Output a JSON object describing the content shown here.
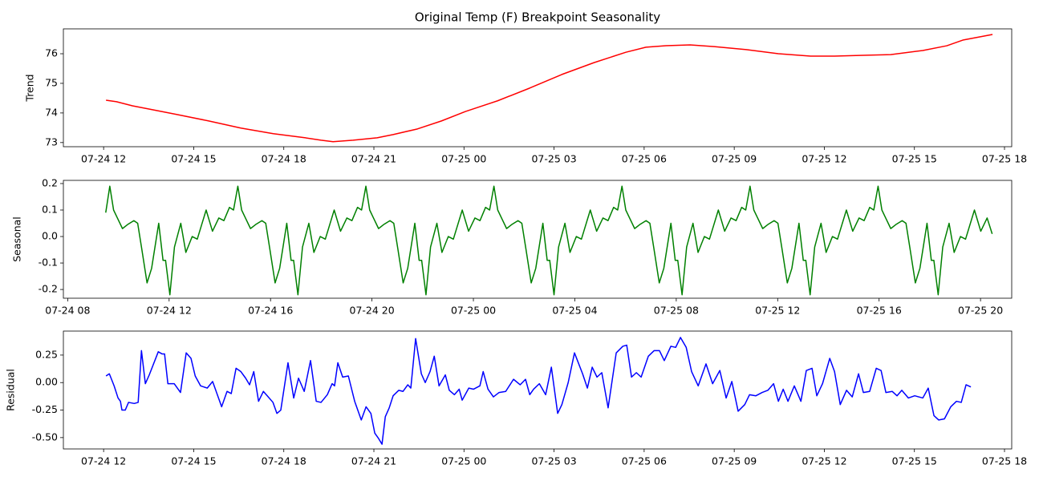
{
  "chart_data": [
    {
      "type": "line",
      "title": "Original Temp (F) Breakpoint Seasonality",
      "ylabel": "Trend",
      "color": "#ff0000",
      "x": [
        12.08,
        12.43,
        12.96,
        13.63,
        14.43,
        15.5,
        16.57,
        17.65,
        18.72,
        19.24,
        19.64,
        20.31,
        21.11,
        21.64,
        22.45,
        23.25,
        24.05,
        25.12,
        26.19,
        27.26,
        28.33,
        29.39,
        30.06,
        30.73,
        31.53,
        32.33,
        33.4,
        34.47,
        35.54,
        36.34,
        37.41,
        38.21,
        39.28,
        40.08,
        40.61,
        41.6
      ],
      "values": [
        74.43,
        74.38,
        74.24,
        74.11,
        73.95,
        73.73,
        73.49,
        73.3,
        73.16,
        73.08,
        73.03,
        73.08,
        73.16,
        73.27,
        73.46,
        73.73,
        74.05,
        74.41,
        74.84,
        75.3,
        75.7,
        76.05,
        76.22,
        76.27,
        76.3,
        76.24,
        76.14,
        76.0,
        75.92,
        75.92,
        75.95,
        75.97,
        76.11,
        76.27,
        76.46,
        76.65
      ],
      "xlim": [
        10.66,
        42.24
      ],
      "ylim": [
        72.86,
        76.84
      ],
      "xticks": [
        {
          "value": 12,
          "label": "07-24 12"
        },
        {
          "value": 15,
          "label": "07-24 15"
        },
        {
          "value": 18,
          "label": "07-24 18"
        },
        {
          "value": 21,
          "label": "07-24 21"
        },
        {
          "value": 24,
          "label": "07-25 00"
        },
        {
          "value": 27,
          "label": "07-25 03"
        },
        {
          "value": 30,
          "label": "07-25 06"
        },
        {
          "value": 33,
          "label": "07-25 09"
        },
        {
          "value": 36,
          "label": "07-25 12"
        },
        {
          "value": 39,
          "label": "07-25 15"
        },
        {
          "value": 42,
          "label": "07-25 18"
        }
      ],
      "yticks": [
        73,
        74,
        75,
        76
      ]
    },
    {
      "type": "line",
      "ylabel": "Seasonal",
      "color": "#008000",
      "x": [
        9.5,
        9.66,
        9.81,
        9.96,
        10.16,
        10.36,
        10.61,
        10.76,
        10.91,
        11.13,
        11.31,
        11.59,
        11.76,
        11.86,
        12.03,
        12.21,
        12.46,
        12.66,
        12.91,
        13.11,
        13.46,
        13.71,
        13.96,
        14.16,
        14.38,
        14.54,
        14.71,
        14.86,
        15.01,
        15.21,
        15.41,
        15.66,
        15.81,
        15.96,
        16.18,
        16.36,
        16.64,
        16.81,
        16.91,
        17.08,
        17.26,
        17.51,
        17.71,
        17.96,
        18.16,
        18.51,
        18.76,
        19.01,
        19.21,
        19.43,
        19.59,
        19.76,
        19.91,
        20.06,
        20.26,
        20.46,
        20.71,
        20.86,
        21.01,
        21.23,
        21.41,
        21.69,
        21.86,
        21.96,
        22.13,
        22.31,
        22.56,
        22.76,
        23.01,
        23.21,
        23.56,
        23.81,
        24.06,
        24.26,
        24.48,
        24.64,
        24.81,
        24.96,
        25.11,
        25.31,
        25.51,
        25.76,
        25.91,
        26.06,
        26.28,
        26.46,
        26.74,
        26.91,
        27.01,
        27.18,
        27.36,
        27.61,
        27.81,
        28.06,
        28.26,
        28.61,
        28.86,
        29.11,
        29.31,
        29.53,
        29.69,
        29.86,
        30.01,
        30.16,
        30.36,
        30.56,
        30.81,
        30.96,
        31.11,
        31.33,
        31.51,
        31.79,
        31.96,
        32.06,
        32.23,
        32.41,
        32.66,
        32.86,
        33.11,
        33.31,
        33.66,
        33.91,
        34.16,
        34.36,
        34.58,
        34.74,
        34.91,
        35.06,
        35.21,
        35.41,
        35.61,
        35.86,
        36.01,
        36.16,
        36.38,
        36.56,
        36.84,
        37.01,
        37.11,
        37.28,
        37.46,
        37.71,
        37.91,
        38.16,
        38.36,
        38.71,
        38.96,
        39.21,
        39.41,
        39.63,
        39.79,
        39.96,
        40.11,
        40.26,
        40.46,
        40.66,
        40.91,
        41.06,
        41.21,
        41.43,
        41.61,
        41.89,
        42.06,
        42.16,
        42.33,
        42.51,
        42.76,
        42.96,
        43.21,
        43.41,
        43.76,
        44.01,
        44.26,
        44.46
      ],
      "values": [
        0.09,
        0.19,
        0.1,
        0.07,
        0.03,
        0.045,
        0.06,
        0.05,
        -0.04,
        -0.175,
        -0.12,
        0.05,
        -0.09,
        -0.09,
        -0.22,
        -0.04,
        0.05,
        -0.06,
        0,
        -0.01,
        0.1,
        0.02,
        0.07,
        0.06,
        0.11,
        0.1,
        0.19,
        0.1,
        0.07,
        0.03,
        0.045,
        0.06,
        0.05,
        -0.04,
        -0.175,
        -0.12,
        0.05,
        -0.09,
        -0.09,
        -0.22,
        -0.04,
        0.05,
        -0.06,
        0,
        -0.01,
        0.1,
        0.02,
        0.07,
        0.06,
        0.11,
        0.1,
        0.19,
        0.1,
        0.07,
        0.03,
        0.045,
        0.06,
        0.05,
        -0.04,
        -0.175,
        -0.12,
        0.05,
        -0.09,
        -0.09,
        -0.22,
        -0.04,
        0.05,
        -0.06,
        0,
        -0.01,
        0.1,
        0.02,
        0.07,
        0.06,
        0.11,
        0.1,
        0.19,
        0.1,
        0.07,
        0.03,
        0.045,
        0.06,
        0.05,
        -0.04,
        -0.175,
        -0.12,
        0.05,
        -0.09,
        -0.09,
        -0.22,
        -0.04,
        0.05,
        -0.06,
        0,
        -0.01,
        0.1,
        0.02,
        0.07,
        0.06,
        0.11,
        0.1,
        0.19,
        0.1,
        0.07,
        0.03,
        0.045,
        0.06,
        0.05,
        -0.04,
        -0.175,
        -0.12,
        0.05,
        -0.09,
        -0.09,
        -0.22,
        -0.04,
        0.05,
        -0.06,
        0,
        -0.01,
        0.1,
        0.02,
        0.07,
        0.06,
        0.11,
        0.1,
        0.19,
        0.1,
        0.07,
        0.03,
        0.045,
        0.06,
        0.05,
        -0.04,
        -0.175,
        -0.12,
        0.05,
        -0.09,
        -0.09,
        -0.22,
        -0.04,
        0.05,
        -0.06,
        0,
        -0.01,
        0.1,
        0.02,
        0.07,
        0.06,
        0.11,
        0.1,
        0.19,
        0.1,
        0.07,
        0.03,
        0.045,
        0.06,
        0.05,
        -0.04,
        -0.175,
        -0.12,
        0.05,
        -0.09,
        -0.09,
        -0.22,
        -0.04,
        0.05,
        -0.06,
        0,
        -0.01,
        0.1,
        0.02,
        0.07,
        0.01
      ],
      "xlim": [
        7.83,
        45.23
      ],
      "ylim": [
        -0.233,
        0.212
      ],
      "xticks": [
        {
          "value": 8,
          "label": "07-24 08"
        },
        {
          "value": 12,
          "label": "07-24 12"
        },
        {
          "value": 16,
          "label": "07-24 16"
        },
        {
          "value": 20,
          "label": "07-24 20"
        },
        {
          "value": 24,
          "label": "07-25 00"
        },
        {
          "value": 28,
          "label": "07-25 04"
        },
        {
          "value": 32,
          "label": "07-25 08"
        },
        {
          "value": 36,
          "label": "07-25 12"
        },
        {
          "value": 40,
          "label": "07-25 16"
        },
        {
          "value": 44,
          "label": "07-25 20"
        }
      ],
      "yticks": [
        -0.2,
        -0.1,
        {
          "value": 0,
          "label": "0.0"
        },
        0.1,
        0.2
      ]
    },
    {
      "type": "line",
      "ylabel": "Residual",
      "color": "#0000ff",
      "x": [
        12.08,
        12.19,
        12.35,
        12.48,
        12.56,
        12.61,
        12.72,
        12.83,
        13.02,
        13.15,
        13.26,
        13.39,
        13.52,
        13.82,
        13.95,
        14.03,
        14.14,
        14.35,
        14.56,
        14.75,
        14.91,
        15.05,
        15.23,
        15.45,
        15.63,
        15.93,
        16.11,
        16.25,
        16.41,
        16.57,
        16.73,
        16.86,
        17.0,
        17.16,
        17.32,
        17.45,
        17.64,
        17.77,
        17.9,
        18.14,
        18.33,
        18.49,
        18.68,
        18.89,
        19.08,
        19.24,
        19.45,
        19.61,
        19.69,
        19.8,
        19.96,
        20.15,
        20.36,
        20.58,
        20.74,
        20.9,
        21.03,
        21.16,
        21.27,
        21.38,
        21.51,
        21.64,
        21.83,
        21.97,
        22.13,
        22.23,
        22.39,
        22.58,
        22.71,
        22.87,
        23.01,
        23.17,
        23.38,
        23.51,
        23.68,
        23.84,
        23.94,
        24.16,
        24.32,
        24.53,
        24.64,
        24.8,
        24.98,
        25.17,
        25.39,
        25.65,
        25.87,
        26.05,
        26.19,
        26.32,
        26.51,
        26.72,
        26.91,
        27.12,
        27.26,
        27.47,
        27.68,
        27.95,
        28.11,
        28.27,
        28.43,
        28.59,
        28.8,
        29.07,
        29.29,
        29.42,
        29.58,
        29.74,
        29.9,
        30.14,
        30.33,
        30.51,
        30.67,
        30.89,
        31.05,
        31.21,
        31.4,
        31.58,
        31.8,
        32.06,
        32.28,
        32.52,
        32.73,
        32.92,
        33.13,
        33.35,
        33.51,
        33.72,
        33.93,
        34.12,
        34.31,
        34.47,
        34.63,
        34.79,
        35.0,
        35.22,
        35.4,
        35.59,
        35.75,
        35.94,
        36.18,
        36.34,
        36.53,
        36.74,
        36.93,
        37.14,
        37.3,
        37.51,
        37.73,
        37.89,
        38.05,
        38.26,
        38.42,
        38.58,
        38.8,
        39.01,
        39.28,
        39.46,
        39.65,
        39.81,
        40.0,
        40.21,
        40.4,
        40.56,
        40.72,
        40.88
      ],
      "values": [
        0.06,
        0.08,
        -0.03,
        -0.14,
        -0.17,
        -0.25,
        -0.25,
        -0.18,
        -0.19,
        -0.18,
        0.29,
        -0.01,
        0.07,
        0.28,
        0.26,
        0.26,
        -0.01,
        -0.01,
        -0.09,
        0.27,
        0.22,
        0.06,
        -0.03,
        -0.05,
        0.01,
        -0.22,
        -0.08,
        -0.1,
        0.13,
        0.1,
        0.04,
        -0.02,
        0.1,
        -0.17,
        -0.08,
        -0.12,
        -0.18,
        -0.28,
        -0.25,
        0.18,
        -0.14,
        0.04,
        -0.08,
        0.2,
        -0.17,
        -0.18,
        -0.11,
        -0.01,
        -0.03,
        0.18,
        0.05,
        0.06,
        -0.17,
        -0.34,
        -0.22,
        -0.28,
        -0.46,
        -0.51,
        -0.56,
        -0.31,
        -0.23,
        -0.12,
        -0.07,
        -0.08,
        -0.02,
        -0.05,
        0.4,
        0.08,
        0,
        0.1,
        0.24,
        -0.03,
        0.07,
        -0.07,
        -0.11,
        -0.06,
        -0.16,
        -0.05,
        -0.06,
        -0.03,
        0.1,
        -0.06,
        -0.13,
        -0.09,
        -0.08,
        0.03,
        -0.02,
        0.03,
        -0.11,
        -0.06,
        -0.01,
        -0.11,
        0.14,
        -0.28,
        -0.2,
        0,
        0.27,
        0.08,
        -0.05,
        0.14,
        0.05,
        0.09,
        -0.23,
        0.27,
        0.33,
        0.34,
        0.05,
        0.09,
        0.05,
        0.24,
        0.29,
        0.29,
        0.2,
        0.33,
        0.32,
        0.41,
        0.32,
        0.1,
        -0.03,
        0.17,
        -0.01,
        0.11,
        -0.14,
        0.01,
        -0.26,
        -0.2,
        -0.11,
        -0.12,
        -0.09,
        -0.07,
        -0.01,
        -0.17,
        -0.06,
        -0.17,
        -0.03,
        -0.17,
        0.11,
        0.13,
        -0.12,
        -0.01,
        0.22,
        0.1,
        -0.2,
        -0.07,
        -0.13,
        0.08,
        -0.09,
        -0.08,
        0.13,
        0.11,
        -0.09,
        -0.08,
        -0.12,
        -0.07,
        -0.14,
        -0.12,
        -0.14,
        -0.05,
        -0.3,
        -0.34,
        -0.33,
        -0.22,
        -0.17,
        -0.18,
        -0.02,
        -0.04
      ],
      "xlim": [
        10.66,
        42.24
      ],
      "ylim": [
        -0.603,
        0.468
      ],
      "xticks": [
        {
          "value": 12,
          "label": "07-24 12"
        },
        {
          "value": 15,
          "label": "07-24 15"
        },
        {
          "value": 18,
          "label": "07-24 18"
        },
        {
          "value": 21,
          "label": "07-24 21"
        },
        {
          "value": 24,
          "label": "07-25 00"
        },
        {
          "value": 27,
          "label": "07-25 03"
        },
        {
          "value": 30,
          "label": "07-25 06"
        },
        {
          "value": 33,
          "label": "07-25 09"
        },
        {
          "value": 36,
          "label": "07-25 12"
        },
        {
          "value": 39,
          "label": "07-25 15"
        },
        {
          "value": 42,
          "label": "07-25 18"
        }
      ],
      "yticks": [
        {
          "value": -0.5,
          "label": "-0.50"
        },
        -0.25,
        {
          "value": 0,
          "label": "0.00"
        },
        0.25
      ]
    }
  ]
}
